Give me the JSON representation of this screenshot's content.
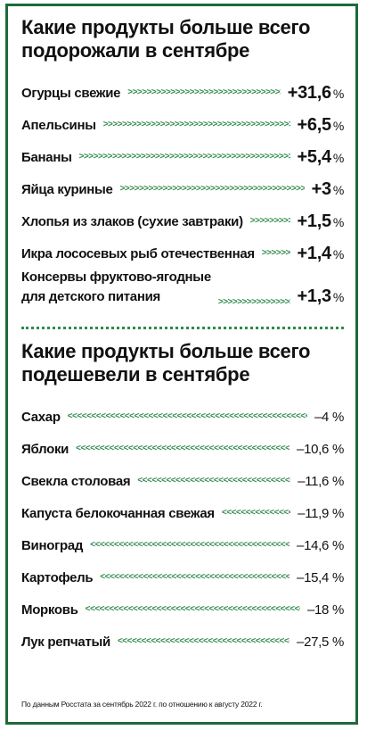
{
  "increase": {
    "title_line1": "Какие продукты больше всего",
    "title_line2": "подорожали в сентябре",
    "arrows": ">>>>>>>>>>>>>>>>>>>>>>>>>>>>>>>>>>>>>>>>>>>>>>>>>>>>>>>>>>>>>>>>>>>>",
    "items": [
      {
        "name": "Огурцы свежие",
        "value": "+31,6",
        "unit": "%"
      },
      {
        "name": "Апельсины",
        "value": "+6,5",
        "unit": "%"
      },
      {
        "name": "Бананы",
        "value": "+5,4",
        "unit": "%"
      },
      {
        "name": "Яйца куриные",
        "value": "+3",
        "unit": "%"
      },
      {
        "name": "Хлопья из злаков (сухие завтраки)",
        "value": "+1,5",
        "unit": "%"
      },
      {
        "name": "Икра лососевых рыб отечественная",
        "value": "+1,4",
        "unit": "%"
      },
      {
        "name_line1": "Консервы фруктово-ягодные",
        "name_line2": "для детского питания",
        "value": "+1,3",
        "unit": "%"
      }
    ]
  },
  "decrease": {
    "title_line1": "Какие продукты больше всего",
    "title_line2": "подешевели в сентябре",
    "arrows": "<<<<<<<<<<<<<<<<<<<<<<<<<<<<<<<<<<<<<<<<<<<<<<<<<<<<<<<<<<<<<<<<<<<<",
    "items": [
      {
        "name": "Сахар",
        "value": "–4 %"
      },
      {
        "name": "Яблоки",
        "value": "–10,6 %"
      },
      {
        "name": "Свекла столовая",
        "value": "–11,6 %"
      },
      {
        "name": "Капуста белокочанная свежая",
        "value": "–11,9 %"
      },
      {
        "name": "Виноград",
        "value": "–14,6 %"
      },
      {
        "name": "Картофель",
        "value": "–15,4 %"
      },
      {
        "name": "Морковь",
        "value": "–18 %"
      },
      {
        "name": "Лук репчатый",
        "value": "–27,5 %"
      }
    ]
  },
  "footnote": "По данным Росстата за сентябрь 2022 г. по отношению к августу 2022 г.",
  "colors": {
    "frame": "#1d6b3a",
    "arrows": "#2f8a4a"
  }
}
